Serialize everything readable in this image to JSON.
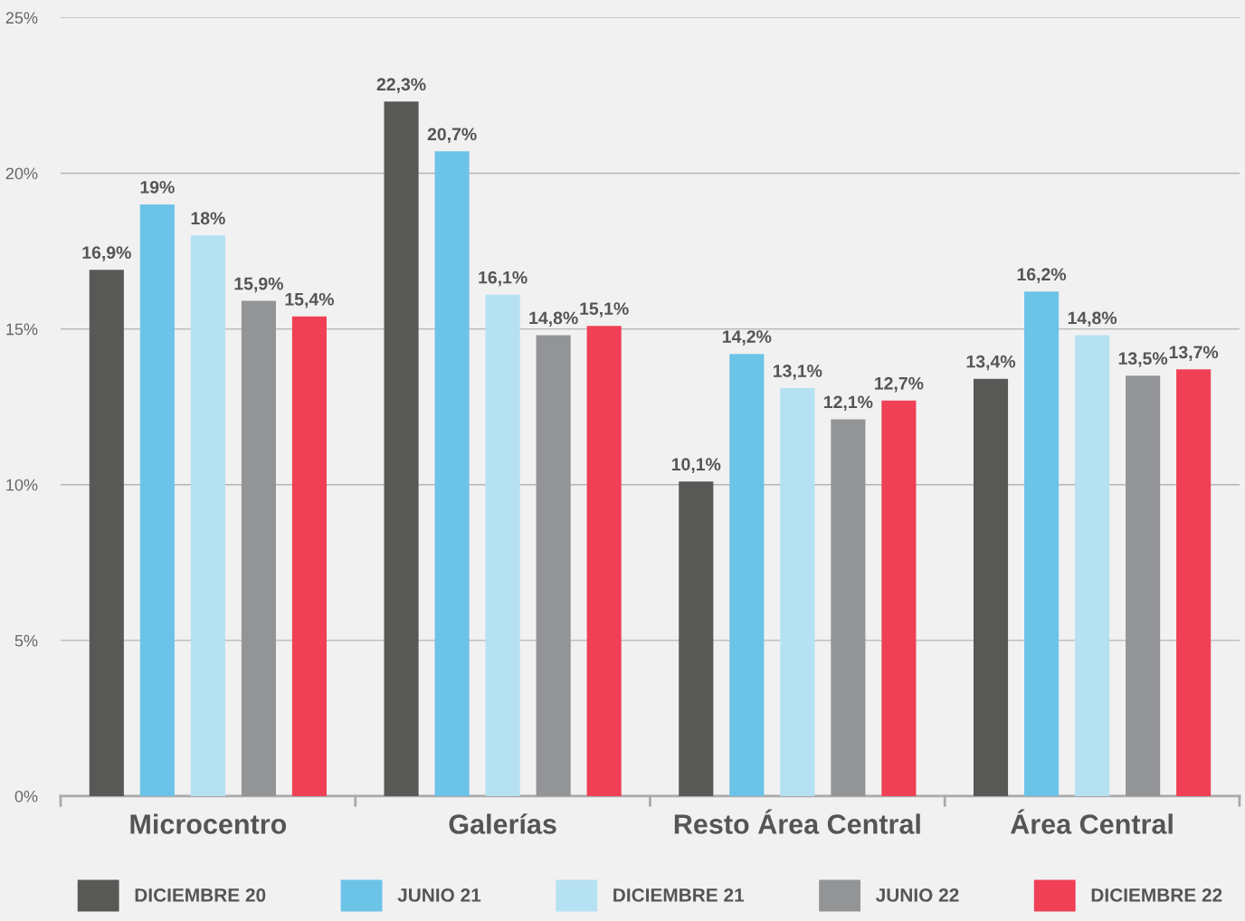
{
  "chart_data": {
    "type": "bar",
    "categories": [
      "Microcentro",
      "Galerías",
      "Resto Área Central",
      "Área Central"
    ],
    "series": [
      {
        "name": "DICIEMBRE 20",
        "color": "#585856",
        "values": [
          16.9,
          22.3,
          10.1,
          13.4
        ],
        "value_labels": [
          "16,9%",
          "22,3%",
          "10,1%",
          "13,4%"
        ]
      },
      {
        "name": "JUNIO 21",
        "color": "#6cc3e8",
        "values": [
          19,
          20.7,
          14.2,
          16.2
        ],
        "value_labels": [
          "19%",
          "20,7%",
          "14,2%",
          "16,2%"
        ]
      },
      {
        "name": "DICIEMBRE 21",
        "color": "#b5e1f3",
        "values": [
          18,
          16.1,
          13.1,
          14.8
        ],
        "value_labels": [
          "18%",
          "16,1%",
          "13,1%",
          "14,8%"
        ]
      },
      {
        "name": "JUNIO 22",
        "color": "#939496",
        "values": [
          15.9,
          14.8,
          12.1,
          13.5
        ],
        "value_labels": [
          "15,9%",
          "14,8%",
          "12,1%",
          "13,5%"
        ]
      },
      {
        "name": "DICIEMBRE 22",
        "color": "#ef4055",
        "values": [
          15.4,
          15.1,
          12.7,
          13.7
        ],
        "value_labels": [
          "15,4%",
          "15,1%",
          "12,7%",
          "13,7%"
        ]
      }
    ],
    "ylim": [
      0,
      25
    ],
    "yticks": [
      {
        "value": 0,
        "label": "0%"
      },
      {
        "value": 5,
        "label": "5%"
      },
      {
        "value": 10,
        "label": "10%"
      },
      {
        "value": 15,
        "label": "15%"
      },
      {
        "value": 20,
        "label": "20%"
      },
      {
        "value": 25,
        "label": "25%"
      }
    ],
    "grid": "y",
    "legend": "bottom"
  }
}
